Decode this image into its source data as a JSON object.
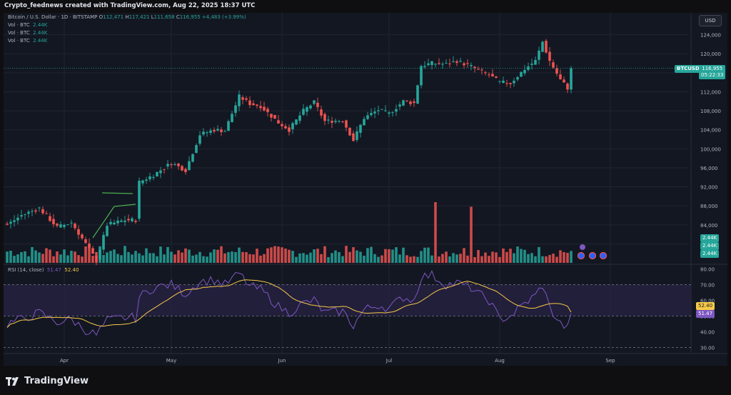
{
  "header": {
    "caption": "Crypto_feednews created with TradingView.com, Aug 22, 2025 18:37 UTC"
  },
  "legend": {
    "symbol": "Bitcoin / U.S. Dollar · 1D · BITSTAMP",
    "ohlc": [
      {
        "label": "O",
        "value": "112,471"
      },
      {
        "label": "H",
        "value": "117,421"
      },
      {
        "label": "L",
        "value": "111,658"
      },
      {
        "label": "C",
        "value": "116,955"
      }
    ],
    "change": "+4,483 (+3.99%)",
    "volumes": [
      {
        "label": "Vol · BTC",
        "value": "2.44K"
      },
      {
        "label": "Vol · BTC",
        "value": "2.44K"
      },
      {
        "label": "Vol · BTC",
        "value": "2.44K"
      }
    ]
  },
  "currency_button": "USD",
  "price_tag": {
    "symbol": "BTCUSD",
    "price": "116,955",
    "countdown": "05:22:33"
  },
  "volume_tags": [
    "2.44K",
    "2.44K",
    "2.44K"
  ],
  "rsi": {
    "label": "RSI (14, close)",
    "value1": "51.47",
    "value2": "52.40"
  },
  "brand": "TradingView",
  "colors": {
    "up": "#26a69a",
    "down": "#ef5350",
    "rsi_line": "#7e57c2",
    "rsi_ma": "#f7c948",
    "band": "#2a2346"
  },
  "chart_data": [
    {
      "type": "candlestick",
      "title": "Bitcoin / U.S. Dollar · 1D · BITSTAMP",
      "y_ticks": [
        "124,000",
        "120,000",
        "116,000",
        "112,000",
        "108,000",
        "104,000",
        "100,000",
        "96,000",
        "92,000",
        "88,000",
        "84,000",
        "80,000"
      ],
      "y_tick_values": [
        124000,
        120000,
        116000,
        112000,
        108000,
        104000,
        100000,
        96000,
        92000,
        88000,
        84000,
        80000
      ],
      "ylim": [
        76000,
        126500
      ],
      "x_ticks": [
        {
          "label": "Apr",
          "index": 16
        },
        {
          "label": "May",
          "index": 46
        },
        {
          "label": "Jun",
          "index": 77
        },
        {
          "label": "Jul",
          "index": 107
        },
        {
          "label": "Aug",
          "index": 138
        },
        {
          "label": "Sep",
          "index": 169
        }
      ],
      "anchors": [
        [
          0,
          84000
        ],
        [
          4,
          86000
        ],
        [
          9,
          87500
        ],
        [
          14,
          83500
        ],
        [
          18,
          84500
        ],
        [
          22,
          80000
        ],
        [
          25,
          76500
        ],
        [
          28,
          84000
        ],
        [
          33,
          85000
        ],
        [
          36,
          85000
        ],
        [
          37,
          93000
        ],
        [
          41,
          94500
        ],
        [
          46,
          97000
        ],
        [
          50,
          95500
        ],
        [
          54,
          103000
        ],
        [
          58,
          104000
        ],
        [
          61,
          103800
        ],
        [
          65,
          111000
        ],
        [
          68,
          109500
        ],
        [
          71,
          109000
        ],
        [
          76,
          105500
        ],
        [
          79,
          104000
        ],
        [
          83,
          108000
        ],
        [
          86,
          109800
        ],
        [
          89,
          105800
        ],
        [
          94,
          106000
        ],
        [
          97,
          101800
        ],
        [
          100,
          106500
        ],
        [
          104,
          108200
        ],
        [
          107,
          107400
        ],
        [
          111,
          110000
        ],
        [
          114,
          109600
        ],
        [
          116,
          117500
        ],
        [
          119,
          118000
        ],
        [
          123,
          117800
        ],
        [
          126,
          118500
        ],
        [
          130,
          117300
        ],
        [
          132,
          116500
        ],
        [
          135,
          115500
        ],
        [
          138,
          114000
        ],
        [
          141,
          113800
        ],
        [
          145,
          116800
        ],
        [
          148,
          118500
        ],
        [
          150,
          122500
        ],
        [
          152,
          118500
        ],
        [
          155,
          114500
        ],
        [
          157,
          112800
        ],
        [
          158,
          116955
        ]
      ],
      "last_candle": {
        "open": 112471,
        "high": 117421,
        "low": 111658,
        "close": 116955
      },
      "volume_spikes": [
        {
          "index": 120,
          "value": 10
        },
        {
          "index": 130,
          "value": 9.2
        }
      ]
    },
    {
      "type": "line",
      "title": "RSI (14, close)",
      "y_ticks": [
        "80.00",
        "70.00",
        "60.00",
        "50.00",
        "40.00",
        "30.00"
      ],
      "y_tick_values": [
        80,
        70,
        60,
        50,
        40,
        30
      ],
      "ylim": [
        27,
        82
      ],
      "band": [
        50,
        70
      ],
      "anchors": [
        [
          0,
          45
        ],
        [
          4,
          48
        ],
        [
          9,
          52
        ],
        [
          14,
          46
        ],
        [
          18,
          48
        ],
        [
          22,
          41
        ],
        [
          25,
          38
        ],
        [
          28,
          47
        ],
        [
          33,
          49
        ],
        [
          36,
          49
        ],
        [
          37,
          62
        ],
        [
          41,
          68
        ],
        [
          46,
          70
        ],
        [
          50,
          64
        ],
        [
          54,
          72
        ],
        [
          58,
          73
        ],
        [
          61,
          70
        ],
        [
          65,
          77
        ],
        [
          68,
          69
        ],
        [
          71,
          67
        ],
        [
          76,
          56
        ],
        [
          79,
          52
        ],
        [
          83,
          58
        ],
        [
          86,
          60
        ],
        [
          89,
          52
        ],
        [
          94,
          53
        ],
        [
          97,
          44
        ],
        [
          100,
          54
        ],
        [
          104,
          57
        ],
        [
          107,
          55
        ],
        [
          111,
          62
        ],
        [
          114,
          60
        ],
        [
          116,
          75
        ],
        [
          119,
          76
        ],
        [
          123,
          70
        ],
        [
          126,
          71
        ],
        [
          130,
          68
        ],
        [
          132,
          64
        ],
        [
          135,
          60
        ],
        [
          138,
          48
        ],
        [
          141,
          50
        ],
        [
          145,
          58
        ],
        [
          148,
          63
        ],
        [
          150,
          70
        ],
        [
          152,
          55
        ],
        [
          155,
          45
        ],
        [
          157,
          42
        ],
        [
          158,
          51.47
        ]
      ],
      "ma_last": 52.4
    }
  ]
}
